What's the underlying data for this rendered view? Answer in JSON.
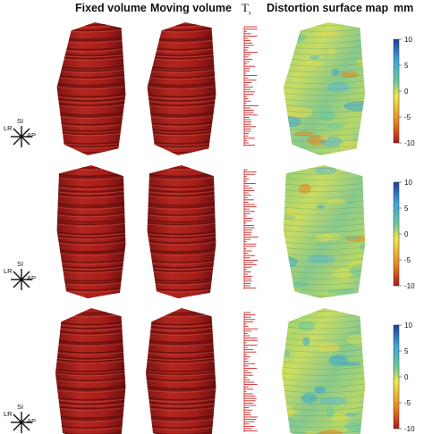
{
  "headers": {
    "fixed": "Fixed volume",
    "moving": "Moving volume",
    "ts": "T",
    "ts_sub": "s",
    "distortion": "Distortion surface map",
    "unit": "mm"
  },
  "orientation_labels": {
    "lr": "LR",
    "si": "SI",
    "ap": "AP"
  },
  "colorbar": {
    "ticks": [
      "10",
      "5",
      "0",
      "-5",
      "-10"
    ],
    "range": [
      -10,
      10
    ],
    "colors": [
      "#b01515",
      "#e8831f",
      "#f0e84a",
      "#69c9a0",
      "#3aa6d8",
      "#1f3f97"
    ]
  },
  "colors": {
    "tissue": "#a8201f",
    "tissue_dark": "#6e1211",
    "tissue_light": "#d04a3c",
    "ts_bar": "#cc2222"
  },
  "rows": [
    {
      "id": "row1"
    },
    {
      "id": "row2"
    },
    {
      "id": "row3"
    }
  ]
}
